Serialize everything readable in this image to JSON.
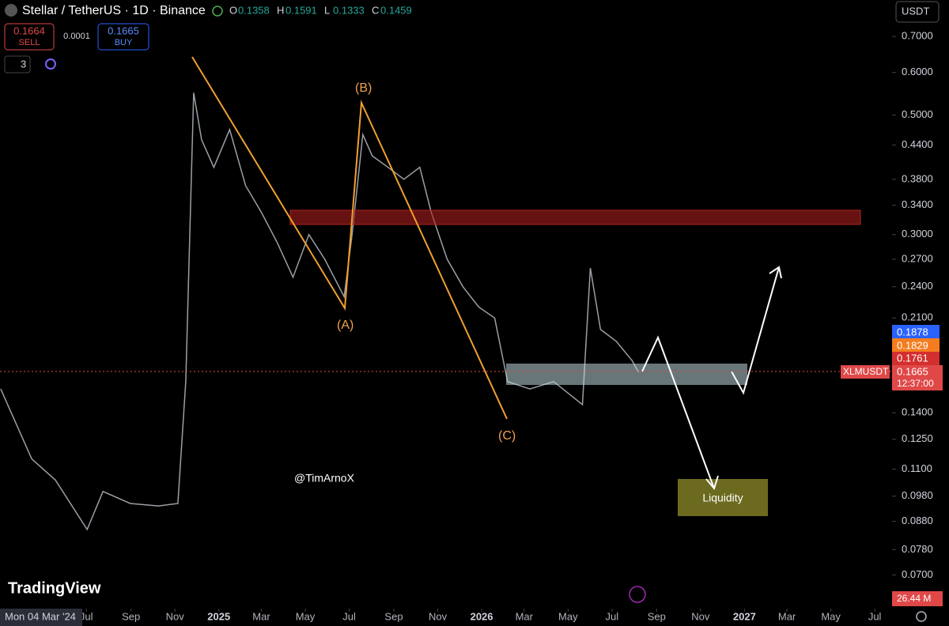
{
  "header": {
    "symbol": "Stellar / TetherUS · 1D · Binance",
    "ohlc": [
      {
        "key": "O",
        "value": "0.1358"
      },
      {
        "key": "H",
        "value": "0.1591"
      },
      {
        "key": "L",
        "value": "0.1333"
      },
      {
        "key": "C",
        "value": "0.1459"
      }
    ],
    "currency": "USDT"
  },
  "trade": {
    "sell_price": "0.1664",
    "sell_label": "SELL",
    "spread": "0.0001",
    "buy_price": "0.1665",
    "buy_label": "BUY",
    "indicators_count": "3"
  },
  "chart_data": {
    "type": "line",
    "color": "#9aa0a6",
    "log_scale": true,
    "xlim": [
      "2024-03-03",
      "2027-07-25"
    ],
    "ylim": [
      0.0606,
      0.818
    ],
    "x": [
      "2024-03-04",
      "2024-04-16",
      "2024-05-19",
      "2024-07-02",
      "2024-07-24",
      "2024-08-31",
      "2024-10-09",
      "2024-11-05",
      "2024-11-16",
      "2024-11-27",
      "2024-12-08",
      "2024-12-25",
      "2025-01-16",
      "2025-02-07",
      "2025-03-01",
      "2025-03-23",
      "2025-04-14",
      "2025-05-06",
      "2025-05-28",
      "2025-06-24",
      "2025-07-05",
      "2025-07-20",
      "2025-08-02",
      "2025-08-24",
      "2025-09-15",
      "2025-10-07",
      "2025-10-23",
      "2025-11-14",
      "2025-12-06",
      "2025-12-28",
      "2026-01-19",
      "2026-02-06",
      "2026-03-09",
      "2026-04-11",
      "2026-05-21",
      "2026-06-01",
      "2026-06-15",
      "2026-07-07",
      "2026-07-29",
      "2026-08-07"
    ],
    "values": [
      0.155,
      0.115,
      0.105,
      0.085,
      0.1,
      0.095,
      0.094,
      0.095,
      0.16,
      0.55,
      0.45,
      0.4,
      0.47,
      0.37,
      0.33,
      0.29,
      0.25,
      0.3,
      0.27,
      0.23,
      0.3,
      0.46,
      0.42,
      0.4,
      0.38,
      0.4,
      0.33,
      0.27,
      0.24,
      0.22,
      0.21,
      0.16,
      0.155,
      0.16,
      0.145,
      0.26,
      0.2,
      0.19,
      0.175,
      0.1665
    ],
    "yticks": [
      {
        "value": 0.7,
        "label": "0.7000"
      },
      {
        "value": 0.6,
        "label": "0.6000"
      },
      {
        "value": 0.5,
        "label": "0.5000"
      },
      {
        "value": 0.44,
        "label": "0.4400"
      },
      {
        "value": 0.38,
        "label": "0.3800"
      },
      {
        "value": 0.34,
        "label": "0.3400"
      },
      {
        "value": 0.3,
        "label": "0.3000"
      },
      {
        "value": 0.27,
        "label": "0.2700"
      },
      {
        "value": 0.24,
        "label": "0.2400"
      },
      {
        "value": 0.21,
        "label": "0.2100"
      },
      {
        "value": 0.14,
        "label": "0.1400"
      },
      {
        "value": 0.125,
        "label": "0.1250"
      },
      {
        "value": 0.11,
        "label": "0.1100"
      },
      {
        "value": 0.098,
        "label": "0.0980"
      },
      {
        "value": 0.088,
        "label": "0.0880"
      },
      {
        "value": 0.078,
        "label": "0.0780"
      },
      {
        "value": 0.07,
        "label": "0.0700"
      }
    ],
    "xticks": [
      {
        "value": "2024-07-01",
        "label": "Jul"
      },
      {
        "value": "2024-09-01",
        "label": "Sep"
      },
      {
        "value": "2024-11-01",
        "label": "Nov"
      },
      {
        "value": "2025-01-01",
        "label": "2025"
      },
      {
        "value": "2025-03-01",
        "label": "Mar"
      },
      {
        "value": "2025-05-01",
        "label": "May"
      },
      {
        "value": "2025-07-01",
        "label": "Jul"
      },
      {
        "value": "2025-09-01",
        "label": "Sep"
      },
      {
        "value": "2025-11-01",
        "label": "Nov"
      },
      {
        "value": "2026-01-01",
        "label": "2026"
      },
      {
        "value": "2026-03-01",
        "label": "Mar"
      },
      {
        "value": "2026-05-01",
        "label": "May"
      },
      {
        "value": "2026-07-01",
        "label": "Jul"
      },
      {
        "value": "2026-09-01",
        "label": "Sep"
      },
      {
        "value": "2026-11-01",
        "label": "Nov"
      },
      {
        "value": "2027-01-01",
        "label": "2027"
      },
      {
        "value": "2027-03-01",
        "label": "Mar"
      },
      {
        "value": "2027-05-01",
        "label": "May"
      },
      {
        "value": "2027-07-01",
        "label": "Jul"
      }
    ],
    "crosshair_date": "Mon 04 Mar '24"
  },
  "price_badges": {
    "blue": "0.1878",
    "orange": "0.1829",
    "red": "0.1761",
    "symbol": "XLMUSDT",
    "last": "0.1665",
    "countdown": "12:37:00",
    "volume": "26.44 M"
  },
  "annotations": {
    "wave_a": "(A)",
    "wave_b": "(B)",
    "wave_c": "(C)",
    "author": "@TimArnoX",
    "liquidity": "Liquidity",
    "brand": "TradingView"
  }
}
